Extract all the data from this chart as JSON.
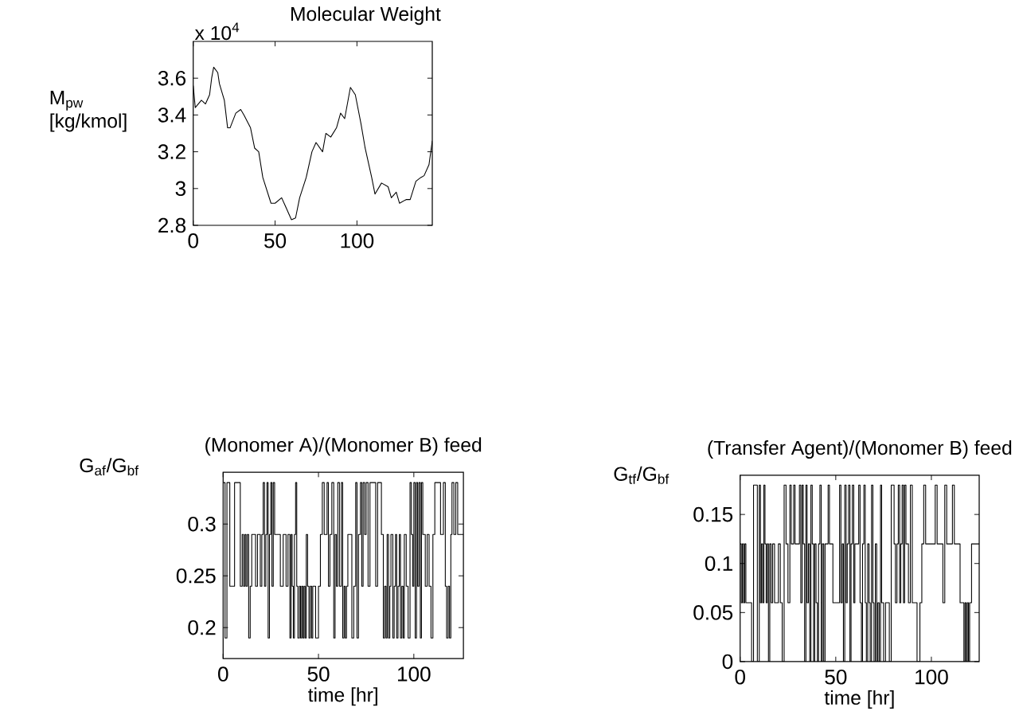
{
  "chart_data": [
    {
      "type": "line",
      "title": "Molecular Weight",
      "ylabel": "M$_{pw}$ [kg/kmol]",
      "annotations": [
        "x 10$^{4}$"
      ],
      "xlim": [
        0,
        146
      ],
      "ylim": [
        2.8,
        3.8
      ],
      "xticks": [
        0,
        50,
        100
      ],
      "yticks": [
        2.8,
        3,
        3.2,
        3.4,
        3.6
      ],
      "series": [
        {
          "color": "#000000",
          "x": [
            0,
            1.25,
            5,
            7.5,
            10,
            11.25,
            12.5,
            15,
            16,
            19,
            21,
            22.5,
            26,
            29,
            31,
            35,
            37.5,
            40,
            42.5,
            47.5,
            50,
            54,
            56,
            60,
            62.5,
            65,
            69,
            72.5,
            75,
            79,
            81,
            84,
            87.5,
            90,
            92.5,
            96,
            99,
            102.5,
            105,
            109,
            111,
            115,
            119,
            121,
            124,
            126,
            130,
            132.5,
            136,
            139,
            141,
            144,
            146
          ],
          "values": [
            3.56,
            3.44,
            3.48,
            3.46,
            3.51,
            3.6,
            3.66,
            3.63,
            3.57,
            3.48,
            3.33,
            3.33,
            3.41,
            3.43,
            3.4,
            3.33,
            3.22,
            3.2,
            3.06,
            2.92,
            2.92,
            2.95,
            2.91,
            2.83,
            2.84,
            2.95,
            3.06,
            3.2,
            3.25,
            3.2,
            3.3,
            3.28,
            3.33,
            3.41,
            3.38,
            3.55,
            3.51,
            3.35,
            3.22,
            3.06,
            2.97,
            3.03,
            3.01,
            2.95,
            2.98,
            2.92,
            2.94,
            2.94,
            3.04,
            3.06,
            3.07,
            3.13,
            3.26
          ]
        }
      ]
    },
    {
      "type": "step",
      "title": "(Monomer A)/(Monomer B) feed",
      "xlabel": "time [hr]",
      "ylabel": "G$_{af}$/G$_{bf}$",
      "xlim": [
        0,
        126
      ],
      "ylim": [
        0.17,
        0.35
      ],
      "xticks": [
        0,
        50,
        100
      ],
      "yticks": [
        0.2,
        0.25,
        0.3
      ],
      "series": [
        {
          "color": "#000000",
          "x": [
            0,
            1,
            2,
            3.5,
            6,
            9,
            10,
            10.7,
            11.4,
            12,
            12.7,
            13.4,
            14.2,
            15,
            17,
            18,
            19.5,
            20.3,
            21,
            21.7,
            22.4,
            23,
            23.6,
            24.3,
            25,
            25.6,
            26.3,
            27,
            30,
            31.5,
            33,
            34,
            35,
            35.6,
            36.2,
            36.8,
            37.4,
            38,
            38.6,
            39.2,
            40,
            40.6,
            41.2,
            41.8,
            42.4,
            43,
            43.6,
            44.3,
            45,
            45.7,
            46.4,
            47,
            48.5,
            50,
            51,
            52,
            53,
            54.5,
            55.2,
            56,
            57,
            58,
            58.7,
            59.4,
            60.1,
            61,
            62,
            62.7,
            63.4,
            64,
            64.7,
            65.4,
            67.5,
            68.5,
            69.5,
            70.2,
            71,
            72,
            72.7,
            73.4,
            74.2,
            75,
            76,
            77,
            80,
            81,
            83,
            84,
            84.7,
            85.4,
            86,
            86.7,
            87.4,
            88,
            89,
            89.7,
            90.4,
            91,
            91.7,
            92.4,
            93,
            93.7,
            94.4,
            95,
            96,
            97,
            98,
            98.7,
            99.4,
            100,
            100.7,
            101.4,
            102,
            102.7,
            103.4,
            104,
            104.7,
            106,
            107,
            108,
            109,
            110,
            111,
            114,
            115.5,
            116.5,
            117.2,
            118,
            118.7,
            119.4,
            120,
            121,
            122,
            123,
            126
          ],
          "values": [
            0.34,
            0.19,
            0.34,
            0.24,
            0.34,
            0.24,
            0.29,
            0.24,
            0.29,
            0.24,
            0.29,
            0.19,
            0.24,
            0.29,
            0.24,
            0.29,
            0.24,
            0.29,
            0.34,
            0.24,
            0.29,
            0.34,
            0.19,
            0.29,
            0.34,
            0.24,
            0.34,
            0.29,
            0.24,
            0.29,
            0.24,
            0.29,
            0.19,
            0.29,
            0.24,
            0.19,
            0.29,
            0.34,
            0.24,
            0.19,
            0.24,
            0.19,
            0.24,
            0.19,
            0.24,
            0.19,
            0.29,
            0.24,
            0.19,
            0.24,
            0.19,
            0.24,
            0.19,
            0.24,
            0.29,
            0.34,
            0.29,
            0.34,
            0.24,
            0.29,
            0.34,
            0.19,
            0.29,
            0.24,
            0.34,
            0.24,
            0.34,
            0.19,
            0.24,
            0.19,
            0.24,
            0.29,
            0.19,
            0.24,
            0.34,
            0.19,
            0.29,
            0.34,
            0.24,
            0.34,
            0.29,
            0.34,
            0.24,
            0.34,
            0.24,
            0.34,
            0.29,
            0.19,
            0.24,
            0.19,
            0.29,
            0.19,
            0.24,
            0.29,
            0.19,
            0.24,
            0.29,
            0.19,
            0.24,
            0.29,
            0.19,
            0.24,
            0.19,
            0.29,
            0.24,
            0.19,
            0.34,
            0.29,
            0.24,
            0.34,
            0.19,
            0.34,
            0.24,
            0.34,
            0.19,
            0.34,
            0.29,
            0.24,
            0.29,
            0.24,
            0.19,
            0.29,
            0.34,
            0.29,
            0.34,
            0.24,
            0.19,
            0.24,
            0.19,
            0.29,
            0.34,
            0.29,
            0.34,
            0.29,
            0.29
          ]
        }
      ]
    },
    {
      "type": "step",
      "title": "(Transfer Agent)/(Monomer B) feed",
      "xlabel": "time [hr]",
      "ylabel": "G$_{tf}$/G$_{bf}$",
      "xlim": [
        0,
        125
      ],
      "ylim": [
        0,
        0.19
      ],
      "xticks": [
        0,
        50,
        100
      ],
      "yticks": [
        0,
        0.05,
        0.1,
        0.15
      ],
      "series": [
        {
          "color": "#000000",
          "x": [
            0,
            0.6,
            1.2,
            1.8,
            2.4,
            3,
            6,
            7,
            9,
            10,
            10.6,
            11.2,
            11.8,
            12.4,
            13,
            13.6,
            14.2,
            14.8,
            15.5,
            16.2,
            17,
            18,
            20,
            21,
            22,
            23,
            24,
            25,
            26,
            26.7,
            28,
            28.7,
            31,
            31.7,
            32.4,
            33,
            33.7,
            34.4,
            35,
            35.7,
            36.4,
            37,
            37.7,
            38.4,
            39,
            39.7,
            40.4,
            41,
            41.7,
            42.4,
            43,
            43.7,
            44.4,
            46,
            46.7,
            48.5,
            52,
            52.7,
            53.4,
            54,
            54.7,
            55.4,
            56,
            56.7,
            57.4,
            58,
            58.7,
            59.4,
            60,
            62,
            62.7,
            63.4,
            64,
            64.7,
            65.4,
            66,
            66.7,
            67.4,
            68,
            68.7,
            69.4,
            70,
            70.7,
            71.4,
            72,
            72.7,
            73.4,
            74,
            75,
            76,
            78,
            79,
            80.5,
            81.2,
            82,
            82.7,
            83.4,
            84,
            84.7,
            85.4,
            86,
            86.7,
            88,
            89,
            90,
            92.5,
            94,
            95,
            96,
            97,
            102,
            103,
            106,
            107,
            108,
            111,
            112,
            115,
            117,
            117.6,
            118.2,
            118.8,
            119.4,
            120,
            121,
            125
          ],
          "values": [
            0.12,
            0.06,
            0.12,
            0.06,
            0.12,
            0.06,
            0,
            0.18,
            0,
            0.18,
            0.06,
            0.12,
            0.06,
            0.18,
            0.12,
            0.06,
            0.12,
            0,
            0.12,
            0.06,
            0.12,
            0.06,
            0.12,
            0.06,
            0,
            0.18,
            0.12,
            0.06,
            0.18,
            0.12,
            0.18,
            0.12,
            0.18,
            0.06,
            0.18,
            0.12,
            0,
            0.18,
            0.06,
            0.12,
            0,
            0.18,
            0.12,
            0,
            0.12,
            0.06,
            0,
            0.12,
            0.18,
            0,
            0.12,
            0,
            0.12,
            0.18,
            0.12,
            0.06,
            0.18,
            0.06,
            0.12,
            0,
            0.18,
            0.06,
            0.12,
            0.18,
            0,
            0.12,
            0.18,
            0.06,
            0.12,
            0.18,
            0.06,
            0,
            0.12,
            0.18,
            0.06,
            0,
            0.12,
            0.06,
            0,
            0.18,
            0.06,
            0,
            0.12,
            0,
            0.06,
            0,
            0.18,
            0.06,
            0,
            0.06,
            0,
            0.18,
            0.12,
            0.06,
            0.12,
            0.18,
            0.06,
            0.12,
            0.18,
            0.06,
            0.18,
            0.12,
            0.06,
            0.18,
            0.06,
            0,
            0.06,
            0.12,
            0.18,
            0.12,
            0.18,
            0.12,
            0.06,
            0.18,
            0.12,
            0.18,
            0.12,
            0.06,
            0,
            0.06,
            0,
            0.06,
            0,
            0.06,
            0.12,
            0.12
          ]
        }
      ]
    }
  ]
}
